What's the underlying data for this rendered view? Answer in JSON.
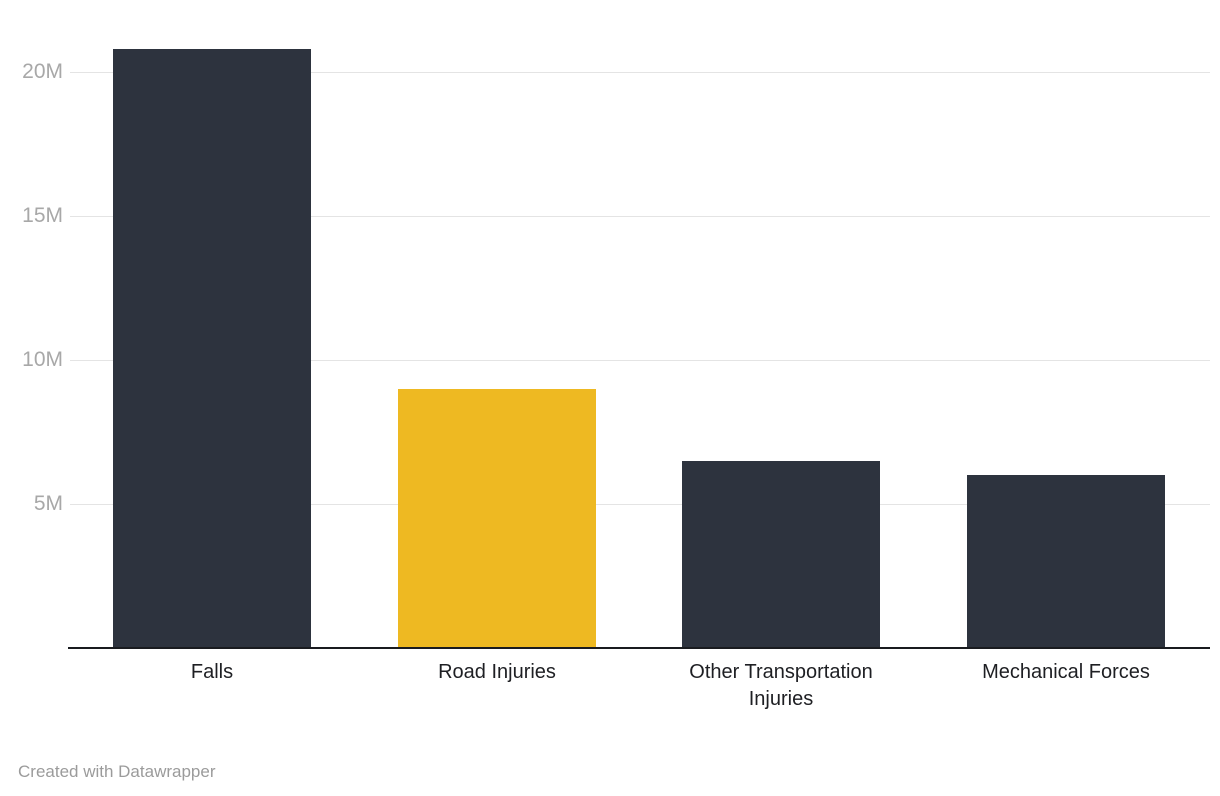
{
  "chart_data": {
    "type": "bar",
    "categories": [
      "Falls",
      "Road Injuries",
      "Other Transportation Injuries",
      "Mechanical Forces"
    ],
    "values": [
      20.8,
      9,
      6.5,
      6
    ],
    "unit": "M",
    "title": "",
    "xlabel": "",
    "ylabel": "",
    "ylim": [
      0,
      22.5
    ],
    "y_ticks": [
      {
        "value": 5,
        "label": "5M"
      },
      {
        "value": 10,
        "label": "10M"
      },
      {
        "value": 15,
        "label": "15M"
      },
      {
        "value": 20,
        "label": "20M"
      }
    ],
    "grid": "horizontal-behind-bars",
    "legend": "none",
    "bar_colors": [
      "#2d333e",
      "#eeb922",
      "#2d333e",
      "#2d333e"
    ],
    "highlight_category": "Road Injuries"
  },
  "colors": {
    "bar_default": "#2d333e",
    "bar_highlight": "#eeb922",
    "gridline": "#e4e4e4",
    "axis_line": "#191b1f",
    "y_tick_label": "#a8a8a8",
    "x_tick_label": "#1e1f23",
    "credit_text": "#9b9b9b",
    "background": "#ffffff"
  },
  "footer": {
    "credit": "Created with Datawrapper"
  }
}
